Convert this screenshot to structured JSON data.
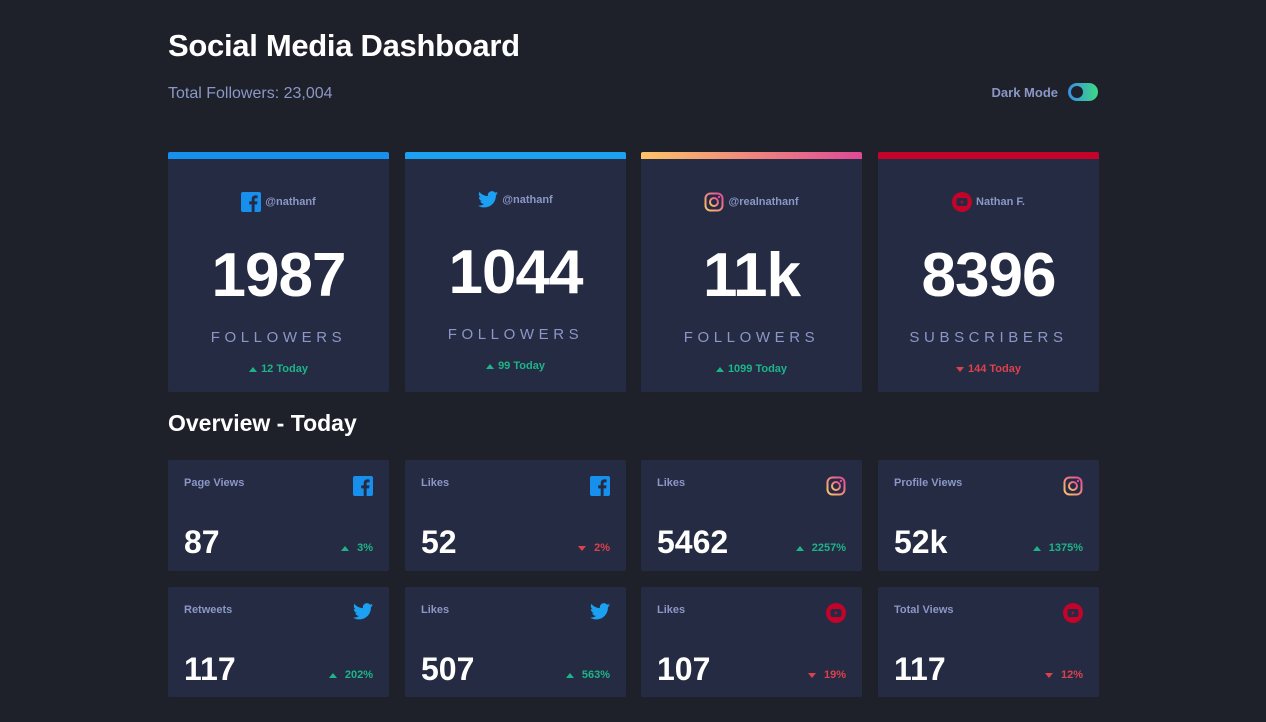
{
  "header": {
    "title": "Social Media Dashboard",
    "total_followers": "Total Followers: 23,004",
    "dark_mode_label": "Dark Mode"
  },
  "colors": {
    "background": "#1e202a",
    "card": "#252b43",
    "facebook": "#178fed",
    "twitter": "#1ca0f2",
    "instagram_start": "#fdc468",
    "instagram_end": "#df4996",
    "youtube": "#c4032a",
    "up": "#1db489",
    "down": "#dc414c",
    "muted_text": "#8b97c6"
  },
  "big_cards": [
    {
      "platform": "facebook",
      "icon": "facebook-icon",
      "handle": "@nathanf",
      "count": "1987",
      "label": "FOLLOWERS",
      "today": "12 Today",
      "trend": "up"
    },
    {
      "platform": "twitter",
      "icon": "twitter-icon",
      "handle": "@nathanf",
      "count": "1044",
      "label": "FOLLOWERS",
      "today": "99 Today",
      "trend": "up"
    },
    {
      "platform": "instagram",
      "icon": "instagram-icon",
      "handle": "@realnathanf",
      "count": "11k",
      "label": "FOLLOWERS",
      "today": "1099 Today",
      "trend": "up"
    },
    {
      "platform": "youtube",
      "icon": "youtube-icon",
      "handle": "Nathan F.",
      "count": "8396",
      "label": "SUBSCRIBERS",
      "today": "144 Today",
      "trend": "down"
    }
  ],
  "overview": {
    "title": "Overview - Today",
    "cards": [
      {
        "metric": "Page Views",
        "icon": "facebook-icon",
        "value": "87",
        "pct": "3%",
        "trend": "up"
      },
      {
        "metric": "Likes",
        "icon": "facebook-icon",
        "value": "52",
        "pct": "2%",
        "trend": "down"
      },
      {
        "metric": "Likes",
        "icon": "instagram-icon",
        "value": "5462",
        "pct": "2257%",
        "trend": "up"
      },
      {
        "metric": "Profile Views",
        "icon": "instagram-icon",
        "value": "52k",
        "pct": "1375%",
        "trend": "up"
      },
      {
        "metric": "Retweets",
        "icon": "twitter-icon",
        "value": "117",
        "pct": "202%",
        "trend": "up"
      },
      {
        "metric": "Likes",
        "icon": "twitter-icon",
        "value": "507",
        "pct": "563%",
        "trend": "up"
      },
      {
        "metric": "Likes",
        "icon": "youtube-icon",
        "value": "107",
        "pct": "19%",
        "trend": "down"
      },
      {
        "metric": "Total Views",
        "icon": "youtube-icon",
        "value": "117",
        "pct": "12%",
        "trend": "down"
      }
    ]
  }
}
